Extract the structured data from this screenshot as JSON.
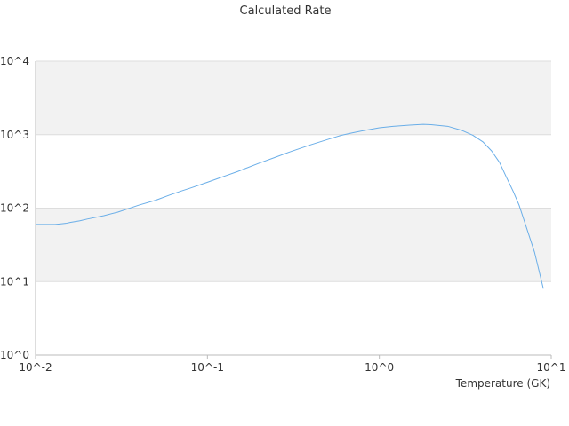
{
  "chart_data": {
    "type": "line",
    "title": "Calculated Rate",
    "xlabel": "Temperature (GK)",
    "ylabel": "",
    "x_scale": "log",
    "y_scale": "log",
    "xlim": [
      0.01,
      10
    ],
    "ylim": [
      1,
      10000
    ],
    "x_ticks": [
      {
        "value": 0.01,
        "label": "10^-2"
      },
      {
        "value": 0.1,
        "label": "10^-1"
      },
      {
        "value": 1,
        "label": "10^0"
      },
      {
        "value": 10,
        "label": "10^1"
      }
    ],
    "y_ticks": [
      {
        "value": 1,
        "label": "10^0"
      },
      {
        "value": 10,
        "label": "10^1"
      },
      {
        "value": 100,
        "label": "10^2"
      },
      {
        "value": 1000,
        "label": "10^3"
      },
      {
        "value": 10000,
        "label": "10^4"
      }
    ],
    "grid": true,
    "legend": "none",
    "colors": {
      "line": "#6aaee8",
      "band": "#f2f2f2",
      "grid": "#dddddd",
      "axis": "#bbbbbb"
    },
    "series": [
      {
        "x": [
          0.01,
          0.012,
          0.013,
          0.014,
          0.015,
          0.016,
          0.018,
          0.02,
          0.025,
          0.03,
          0.04,
          0.05,
          0.06,
          0.07,
          0.08,
          0.1,
          0.12,
          0.15,
          0.2,
          0.25,
          0.3,
          0.4,
          0.5,
          0.6,
          0.7,
          0.8,
          1.0,
          1.2,
          1.5,
          1.8,
          2.0,
          2.5,
          3.0,
          3.5,
          4.0,
          4.5,
          5.0,
          5.5,
          6.0,
          6.5,
          7.0,
          8.0,
          9.0
        ],
        "y": [
          60,
          60,
          60,
          61,
          62,
          64,
          67,
          71,
          79,
          88,
          110,
          128,
          150,
          170,
          188,
          225,
          262,
          315,
          410,
          495,
          580,
          730,
          860,
          980,
          1060,
          1130,
          1240,
          1300,
          1350,
          1380,
          1370,
          1300,
          1150,
          980,
          800,
          600,
          420,
          260,
          170,
          110,
          65,
          25,
          8
        ]
      }
    ]
  }
}
